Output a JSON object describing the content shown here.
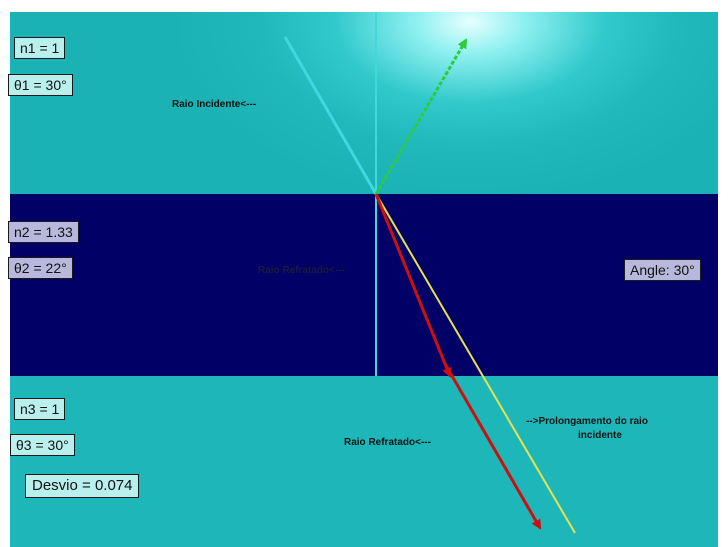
{
  "colors": {
    "medium_top": "#1fb8bb",
    "medium_middle": "#000066",
    "medium_bottom": "#1eb7b9",
    "incident_ray": "#40d8e0",
    "reflected_ray": "#2ecc3a",
    "refracted_ray": "#cc1010",
    "extension_ray": "#e8e050",
    "normal_line": "#40d8d8"
  },
  "boxes": {
    "n1": "n1 = 1",
    "theta1": "θ1 = 30°",
    "n2": "n2 = 1.33",
    "theta2": "θ2 = 22°",
    "n3": "n3 = 1",
    "theta3": "θ3 = 30°",
    "desvio": "Desvio = 0.074",
    "angle": "Angle: 30°"
  },
  "labels": {
    "incident": "Raio Incidente<---",
    "refracted_middle": "Raio Refratado<---",
    "refracted_bottom": "Raio Refratado<---",
    "extension_line1": "-->Prolongamento do raio",
    "extension_line2": "incidente"
  }
}
